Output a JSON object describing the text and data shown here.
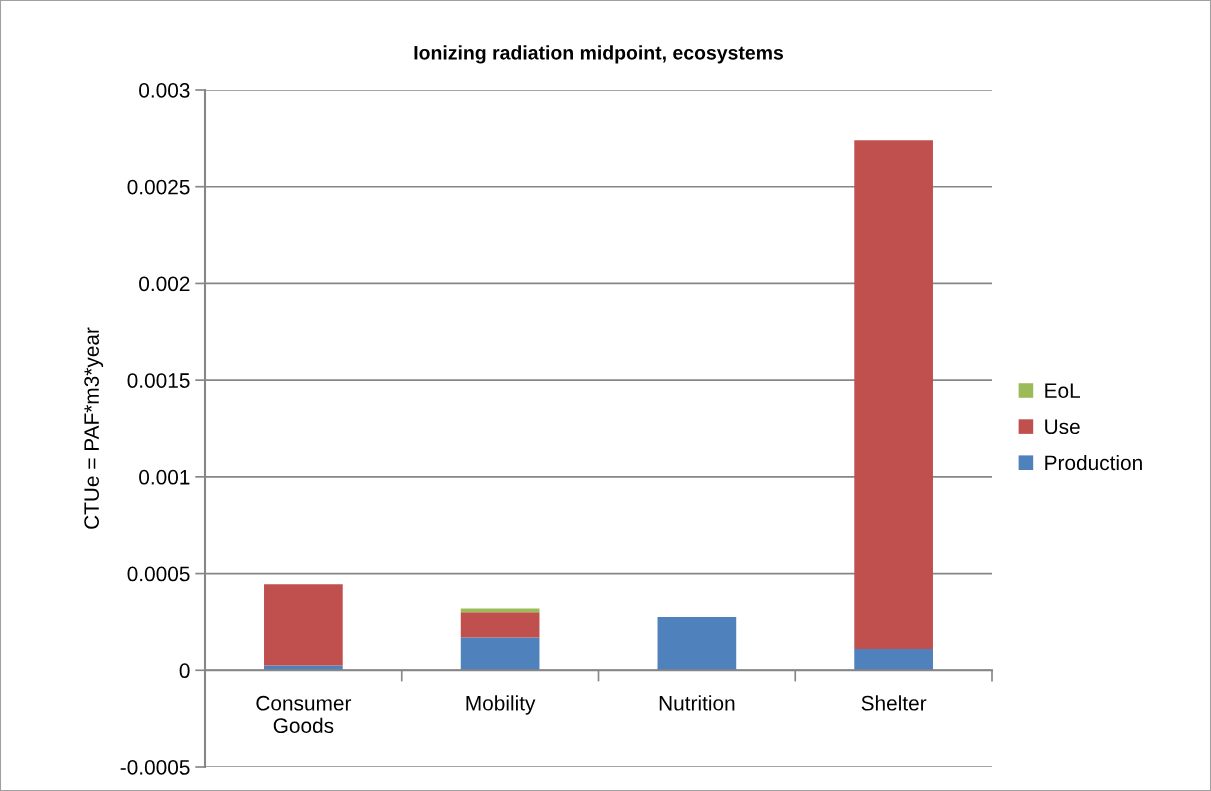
{
  "chart_data": {
    "type": "bar",
    "title": "Ionizing radiation midpoint, ecosystems",
    "ylabel": "CTUe = PAF*m3*year",
    "categories": [
      "Consumer Goods",
      "Mobility",
      "Nutrition",
      "Shelter"
    ],
    "series": [
      {
        "name": "Production",
        "color": "#4f81bd",
        "values": [
          2.5e-05,
          0.00017,
          0.000276,
          0.00011
        ]
      },
      {
        "name": "Use",
        "color": "#c0504d",
        "values": [
          0.00042,
          0.00013,
          0,
          0.00263
        ]
      },
      {
        "name": "EoL",
        "color": "#9bbb59",
        "values": [
          0,
          2e-05,
          0,
          0
        ]
      }
    ],
    "stacked": true,
    "ylim": [
      -0.0005,
      0.003
    ],
    "yticks": [
      -0.0005,
      0,
      0.0005,
      0.001,
      0.0015,
      0.002,
      0.0025,
      0.003
    ],
    "grid": "y",
    "legend": "right"
  }
}
